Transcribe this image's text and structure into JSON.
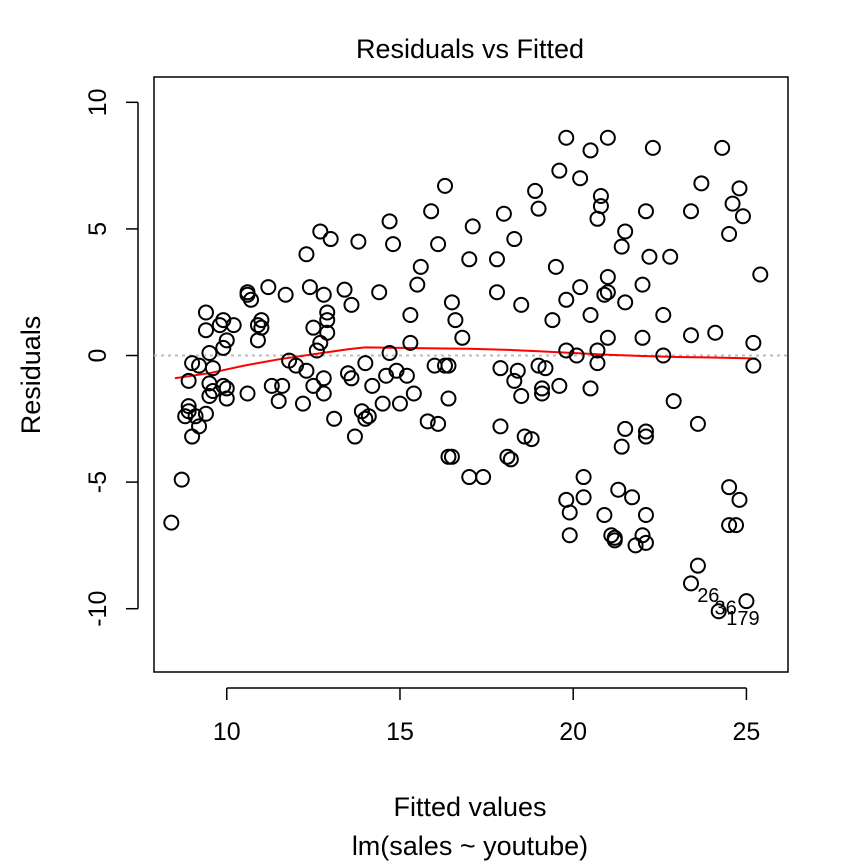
{
  "chart_data": {
    "type": "scatter",
    "title": "Residuals vs Fitted",
    "xlabel": "Fitted values",
    "subtitle": "lm(sales ~ youtube)",
    "ylabel": "Residuals",
    "xlim": [
      7.9,
      26.2
    ],
    "ylim": [
      -12.5,
      11
    ],
    "xticks": [
      10,
      15,
      20,
      25
    ],
    "yticks": [
      -10,
      -5,
      0,
      5,
      10
    ],
    "grid": false,
    "colors": {
      "points": "#000000",
      "smoother": "#ff0000",
      "zero_line": "#bbbbbb"
    },
    "reference_line": {
      "y": 0,
      "style": "dotted"
    },
    "smoother": {
      "x": [
        8.5,
        9.5,
        10.5,
        11.5,
        12.5,
        13.5,
        14.0,
        15.0,
        16.0,
        17.0,
        18.0,
        19.0,
        20.0,
        21.0,
        22.0,
        23.0,
        24.0,
        25.3
      ],
      "y": [
        -0.9,
        -0.7,
        -0.4,
        -0.15,
        0.05,
        0.25,
        0.32,
        0.3,
        0.28,
        0.27,
        0.23,
        0.17,
        0.1,
        0.03,
        -0.02,
        -0.06,
        -0.08,
        -0.12
      ]
    },
    "point_labels": [
      {
        "text": "26",
        "x": 23.9,
        "y": -9.5
      },
      {
        "text": "36",
        "x": 24.4,
        "y": -10.0
      },
      {
        "text": "179",
        "x": 24.9,
        "y": -10.4
      }
    ],
    "points": [
      [
        8.4,
        -6.6
      ],
      [
        8.7,
        -4.9
      ],
      [
        8.8,
        -2.4
      ],
      [
        8.9,
        -1.0
      ],
      [
        8.9,
        -2.2
      ],
      [
        9.0,
        -0.3
      ],
      [
        8.9,
        -2.0
      ],
      [
        9.0,
        -3.2
      ],
      [
        9.2,
        -0.4
      ],
      [
        9.1,
        -2.4
      ],
      [
        9.2,
        -2.8
      ],
      [
        9.4,
        -2.3
      ],
      [
        9.4,
        1.7
      ],
      [
        9.4,
        1.0
      ],
      [
        9.5,
        0.1
      ],
      [
        9.5,
        -1.1
      ],
      [
        9.6,
        -1.4
      ],
      [
        9.5,
        -1.6
      ],
      [
        9.6,
        -0.5
      ],
      [
        9.8,
        1.2
      ],
      [
        9.9,
        1.4
      ],
      [
        9.9,
        0.3
      ],
      [
        10.0,
        0.6
      ],
      [
        9.9,
        -1.2
      ],
      [
        10.0,
        -1.7
      ],
      [
        10.0,
        -1.3
      ],
      [
        10.2,
        1.2
      ],
      [
        10.6,
        2.4
      ],
      [
        10.6,
        2.5
      ],
      [
        10.7,
        2.2
      ],
      [
        10.6,
        -1.5
      ],
      [
        10.9,
        1.2
      ],
      [
        10.9,
        0.6
      ],
      [
        11.0,
        1.4
      ],
      [
        11.0,
        1.1
      ],
      [
        11.2,
        2.7
      ],
      [
        11.3,
        -1.2
      ],
      [
        11.5,
        -1.8
      ],
      [
        11.7,
        2.4
      ],
      [
        11.6,
        -1.2
      ],
      [
        11.8,
        -0.2
      ],
      [
        12.0,
        -0.4
      ],
      [
        12.2,
        -1.9
      ],
      [
        12.3,
        -0.6
      ],
      [
        12.4,
        2.7
      ],
      [
        12.3,
        4.0
      ],
      [
        12.5,
        1.1
      ],
      [
        12.5,
        -1.2
      ],
      [
        12.6,
        0.2
      ],
      [
        12.7,
        0.5
      ],
      [
        12.7,
        4.9
      ],
      [
        12.8,
        2.4
      ],
      [
        12.8,
        -0.9
      ],
      [
        12.8,
        -1.5
      ],
      [
        12.9,
        1.7
      ],
      [
        12.9,
        1.4
      ],
      [
        12.9,
        0.9
      ],
      [
        13.0,
        4.6
      ],
      [
        13.1,
        -2.5
      ],
      [
        13.4,
        2.6
      ],
      [
        13.5,
        -0.7
      ],
      [
        13.6,
        2.0
      ],
      [
        13.6,
        -0.9
      ],
      [
        13.7,
        -3.2
      ],
      [
        13.8,
        4.5
      ],
      [
        13.9,
        -2.2
      ],
      [
        14.0,
        -0.3
      ],
      [
        14.0,
        -2.5
      ],
      [
        14.1,
        -2.4
      ],
      [
        14.2,
        -1.2
      ],
      [
        14.4,
        2.5
      ],
      [
        14.5,
        -1.9
      ],
      [
        14.6,
        -0.8
      ],
      [
        14.7,
        5.3
      ],
      [
        14.7,
        0.1
      ],
      [
        14.8,
        4.4
      ],
      [
        14.9,
        -0.6
      ],
      [
        15.0,
        -1.9
      ],
      [
        15.2,
        -0.8
      ],
      [
        15.3,
        0.5
      ],
      [
        15.3,
        1.6
      ],
      [
        15.4,
        -1.5
      ],
      [
        15.6,
        3.5
      ],
      [
        15.5,
        2.8
      ],
      [
        15.8,
        -2.6
      ],
      [
        15.9,
        5.7
      ],
      [
        16.0,
        -0.4
      ],
      [
        16.1,
        -2.7
      ],
      [
        16.1,
        4.4
      ],
      [
        16.3,
        -0.4
      ],
      [
        16.3,
        6.7
      ],
      [
        16.4,
        -1.7
      ],
      [
        16.4,
        -0.4
      ],
      [
        16.4,
        -4.0
      ],
      [
        16.5,
        -4.0
      ],
      [
        16.5,
        2.1
      ],
      [
        16.6,
        1.4
      ],
      [
        16.8,
        0.7
      ],
      [
        17.0,
        3.8
      ],
      [
        17.0,
        -4.8
      ],
      [
        17.1,
        5.1
      ],
      [
        17.4,
        -4.8
      ],
      [
        17.8,
        2.5
      ],
      [
        17.8,
        3.8
      ],
      [
        17.9,
        -0.5
      ],
      [
        17.9,
        -2.8
      ],
      [
        18.0,
        5.6
      ],
      [
        18.1,
        -4.0
      ],
      [
        18.2,
        -4.1
      ],
      [
        18.3,
        4.6
      ],
      [
        18.3,
        -1.0
      ],
      [
        18.4,
        -0.6
      ],
      [
        18.5,
        2.0
      ],
      [
        18.5,
        -1.6
      ],
      [
        18.6,
        -3.2
      ],
      [
        18.8,
        -3.3
      ],
      [
        18.9,
        6.5
      ],
      [
        19.0,
        5.8
      ],
      [
        19.0,
        -0.4
      ],
      [
        19.1,
        -1.3
      ],
      [
        19.1,
        -1.5
      ],
      [
        19.2,
        -0.5
      ],
      [
        19.4,
        1.4
      ],
      [
        19.5,
        3.5
      ],
      [
        19.6,
        -1.2
      ],
      [
        19.6,
        7.3
      ],
      [
        19.8,
        8.6
      ],
      [
        19.8,
        2.2
      ],
      [
        19.8,
        0.2
      ],
      [
        19.8,
        -5.7
      ],
      [
        19.9,
        -6.2
      ],
      [
        19.9,
        -7.1
      ],
      [
        20.1,
        0.0
      ],
      [
        20.2,
        7.0
      ],
      [
        20.2,
        2.7
      ],
      [
        20.3,
        -5.6
      ],
      [
        20.3,
        -4.8
      ],
      [
        20.5,
        8.1
      ],
      [
        20.5,
        -1.3
      ],
      [
        20.5,
        1.6
      ],
      [
        20.7,
        5.4
      ],
      [
        20.7,
        0.2
      ],
      [
        20.7,
        -0.3
      ],
      [
        20.8,
        6.3
      ],
      [
        20.8,
        5.9
      ],
      [
        20.9,
        2.4
      ],
      [
        20.9,
        -6.3
      ],
      [
        21.0,
        8.6
      ],
      [
        21.0,
        3.1
      ],
      [
        21.0,
        2.5
      ],
      [
        21.0,
        0.7
      ],
      [
        21.1,
        -7.1
      ],
      [
        21.2,
        -7.3
      ],
      [
        21.2,
        -7.2
      ],
      [
        21.3,
        -5.3
      ],
      [
        21.4,
        4.3
      ],
      [
        21.5,
        4.9
      ],
      [
        21.5,
        2.1
      ],
      [
        21.4,
        -3.6
      ],
      [
        21.5,
        -2.9
      ],
      [
        21.7,
        -5.6
      ],
      [
        21.8,
        -7.5
      ],
      [
        22.0,
        2.8
      ],
      [
        22.0,
        -7.1
      ],
      [
        22.0,
        0.7
      ],
      [
        22.1,
        5.7
      ],
      [
        22.1,
        -3.2
      ],
      [
        22.1,
        -3.0
      ],
      [
        22.1,
        -7.4
      ],
      [
        22.1,
        -6.3
      ],
      [
        22.2,
        3.9
      ],
      [
        22.3,
        8.2
      ],
      [
        22.6,
        1.6
      ],
      [
        22.6,
        0.0
      ],
      [
        22.8,
        3.9
      ],
      [
        22.9,
        -1.8
      ],
      [
        23.4,
        5.7
      ],
      [
        23.4,
        0.8
      ],
      [
        23.4,
        -9.0
      ],
      [
        23.6,
        -8.3
      ],
      [
        23.6,
        -2.7
      ],
      [
        23.7,
        6.8
      ],
      [
        24.1,
        0.9
      ],
      [
        24.2,
        -10.1
      ],
      [
        24.3,
        8.2
      ],
      [
        24.5,
        -5.2
      ],
      [
        24.5,
        -6.7
      ],
      [
        24.5,
        4.8
      ],
      [
        24.6,
        6.0
      ],
      [
        24.7,
        -6.7
      ],
      [
        24.8,
        -5.7
      ],
      [
        24.8,
        6.6
      ],
      [
        24.9,
        5.5
      ],
      [
        25.0,
        -9.7
      ],
      [
        25.2,
        0.5
      ],
      [
        25.2,
        -0.4
      ],
      [
        25.4,
        3.2
      ]
    ]
  }
}
